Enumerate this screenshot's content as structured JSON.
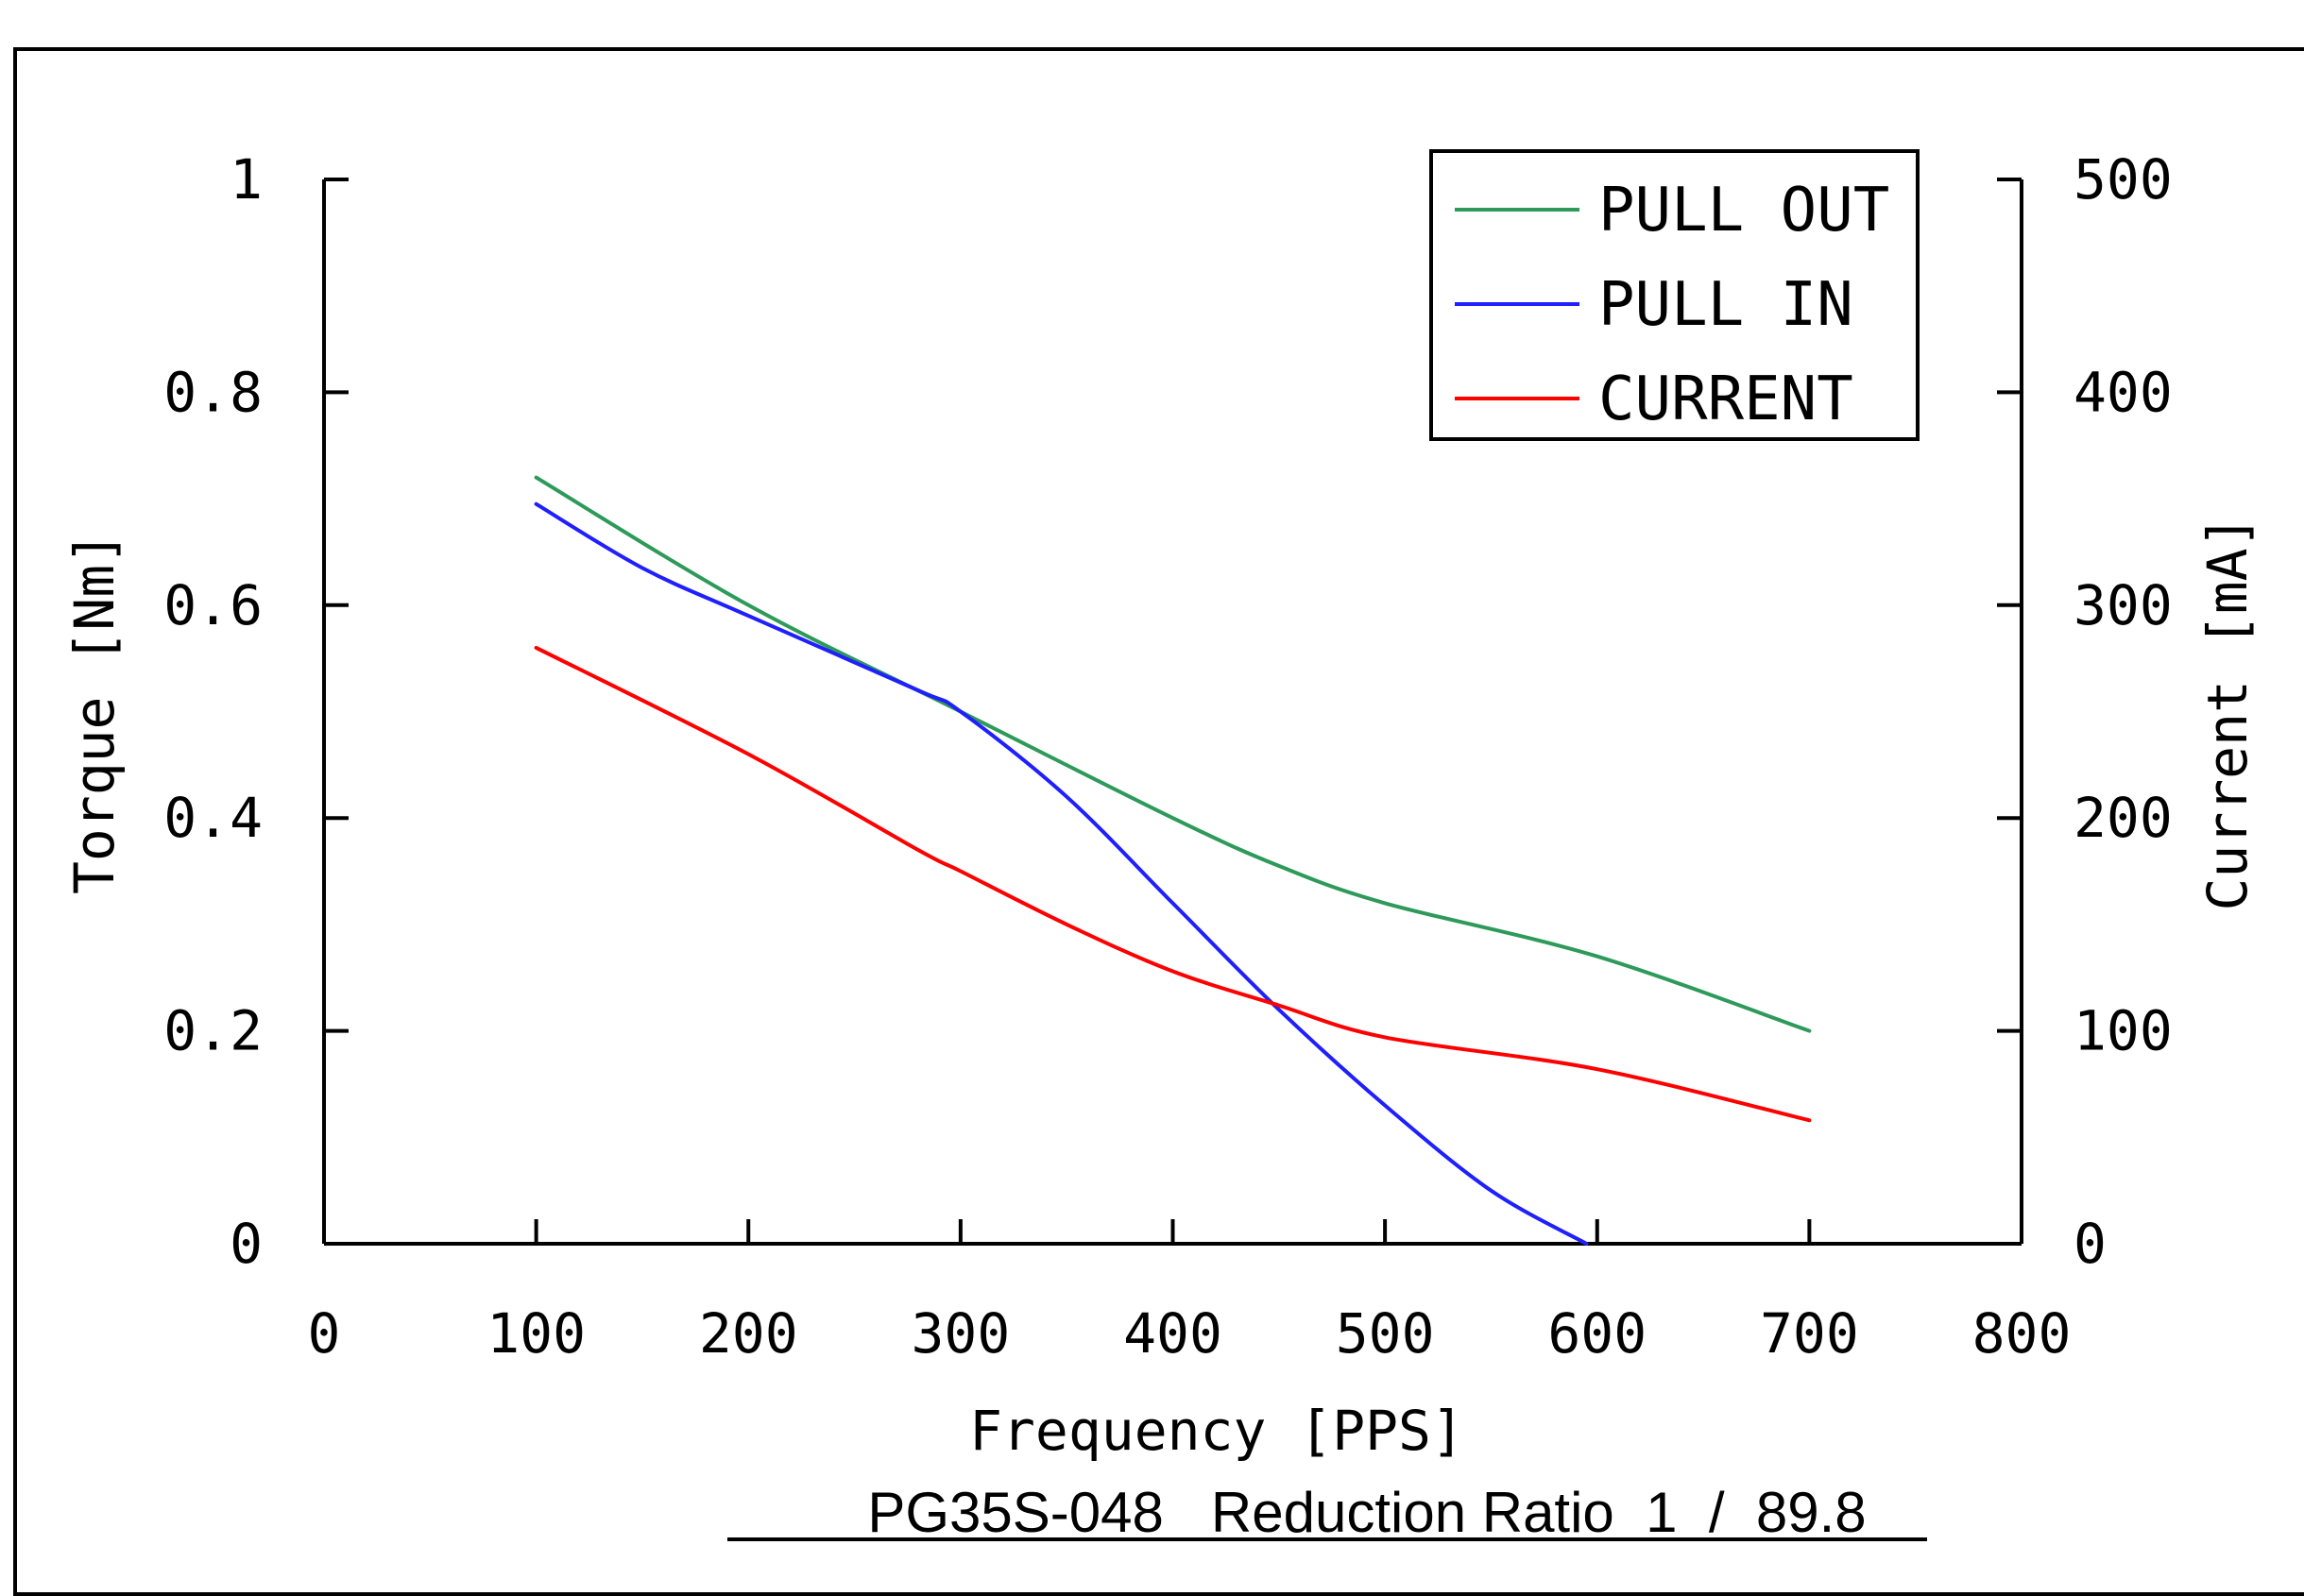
{
  "chart_data": {
    "type": "line",
    "xlabel": "Frequency [PPS]",
    "ylabel_left": "Torque [Nm]",
    "ylabel_right": "Current [mA]",
    "caption": "PG35S-048   Reduction Ratio  1  /  89.8",
    "xlim": [
      0,
      800
    ],
    "ylim_left": [
      0,
      1
    ],
    "ylim_right": [
      0,
      500
    ],
    "x_ticks": [
      0,
      100,
      200,
      300,
      400,
      500,
      600,
      700,
      800
    ],
    "x_tick_labels": [
      "0",
      "100",
      "200",
      "300",
      "400",
      "500",
      "600",
      "700",
      "800"
    ],
    "y_left_ticks": [
      0,
      0.2,
      0.4,
      0.6,
      0.8,
      1
    ],
    "y_left_tick_labels": [
      "0",
      "0.2",
      "0.4",
      "0.6",
      "0.8",
      "1"
    ],
    "y_right_ticks": [
      0,
      100,
      200,
      300,
      400,
      500
    ],
    "y_right_tick_labels": [
      "0",
      "100",
      "200",
      "300",
      "400",
      "500"
    ],
    "grid": false,
    "legend_position": "top-right",
    "series": [
      {
        "name": "PULL OUT",
        "axis": "left",
        "color": "#2e9a5a",
        "x": [
          100,
          200,
          300,
          400,
          450,
          500,
          600,
          700
        ],
        "y": [
          0.72,
          0.6,
          0.5,
          0.4,
          0.355,
          0.32,
          0.27,
          0.2
        ]
      },
      {
        "name": "PULL IN",
        "axis": "left",
        "color": "#1f1fff",
        "x": [
          100,
          150,
          200,
          280,
          300,
          350,
          400,
          450,
          500,
          550,
          595
        ],
        "y": [
          0.695,
          0.635,
          0.59,
          0.52,
          0.5,
          0.42,
          0.32,
          0.22,
          0.13,
          0.05,
          0
        ]
      },
      {
        "name": "CURRENT",
        "axis": "right",
        "color": "#ff0000",
        "x": [
          100,
          200,
          280,
          300,
          350,
          400,
          450,
          500,
          600,
          700
        ],
        "y": [
          280,
          230,
          185,
          175,
          150,
          128,
          112,
          97,
          82,
          58
        ]
      }
    ]
  }
}
